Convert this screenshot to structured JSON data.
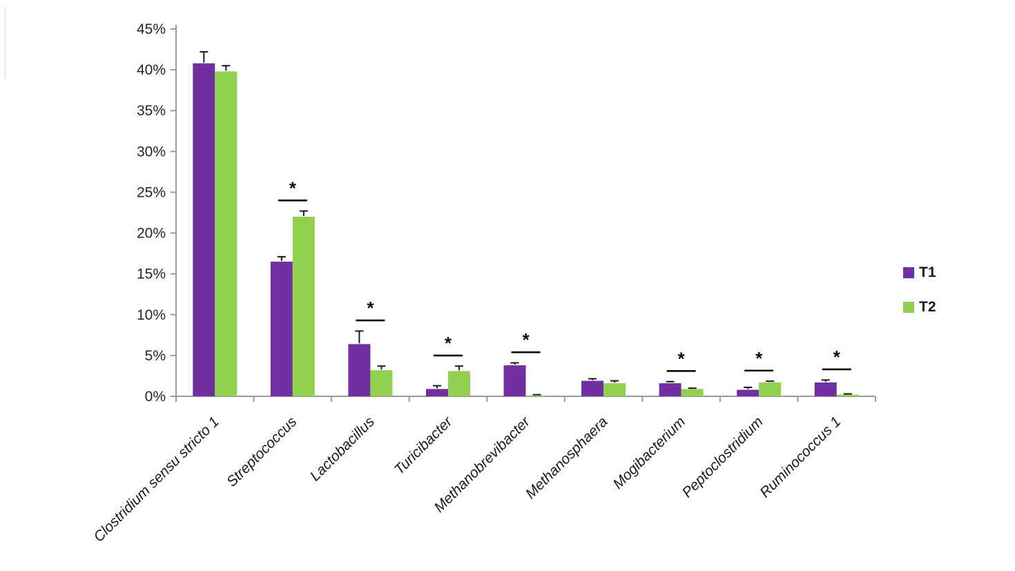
{
  "chart_data": {
    "type": "bar",
    "title": "",
    "xlabel": "",
    "ylabel": "",
    "categories": [
      "Clostridium sensu stricto 1",
      "Streptococcus",
      "Lactobacillus",
      "Turicibacter",
      "Methanobrevibacter",
      "Methanosphaera",
      "Mogibacterium",
      "Peptoclostridium",
      "Ruminococcus 1"
    ],
    "series": [
      {
        "name": "T1",
        "color": "#7030A0",
        "values": [
          40.8,
          16.5,
          6.4,
          0.9,
          3.8,
          1.9,
          1.6,
          0.8,
          1.7
        ],
        "errors": [
          1.4,
          0.6,
          1.6,
          0.4,
          0.3,
          0.25,
          0.2,
          0.3,
          0.3
        ]
      },
      {
        "name": "T2",
        "color": "#92D050",
        "values": [
          39.8,
          22.0,
          3.2,
          3.1,
          0.1,
          1.6,
          0.9,
          1.7,
          0.2
        ],
        "errors": [
          0.7,
          0.7,
          0.5,
          0.6,
          0.1,
          0.3,
          0.1,
          0.15,
          0.1
        ]
      }
    ],
    "significant": [
      false,
      true,
      true,
      true,
      true,
      false,
      true,
      true,
      true
    ],
    "sig_marker": "*",
    "ylim": [
      0,
      45
    ],
    "ytick_step": 5,
    "ytick_labels": [
      "0%",
      "5%",
      "10%",
      "15%",
      "20%",
      "25%",
      "30%",
      "35%",
      "40%",
      "45%"
    ],
    "grid": false,
    "legend_position": "right",
    "error_bar_color": "#1a1a1a",
    "axis_color": "#9b9b9b",
    "tick_label_color": "#262626"
  },
  "legend": {
    "items": [
      {
        "label": "T1",
        "color": "#7030A0"
      },
      {
        "label": "T2",
        "color": "#92D050"
      }
    ]
  }
}
